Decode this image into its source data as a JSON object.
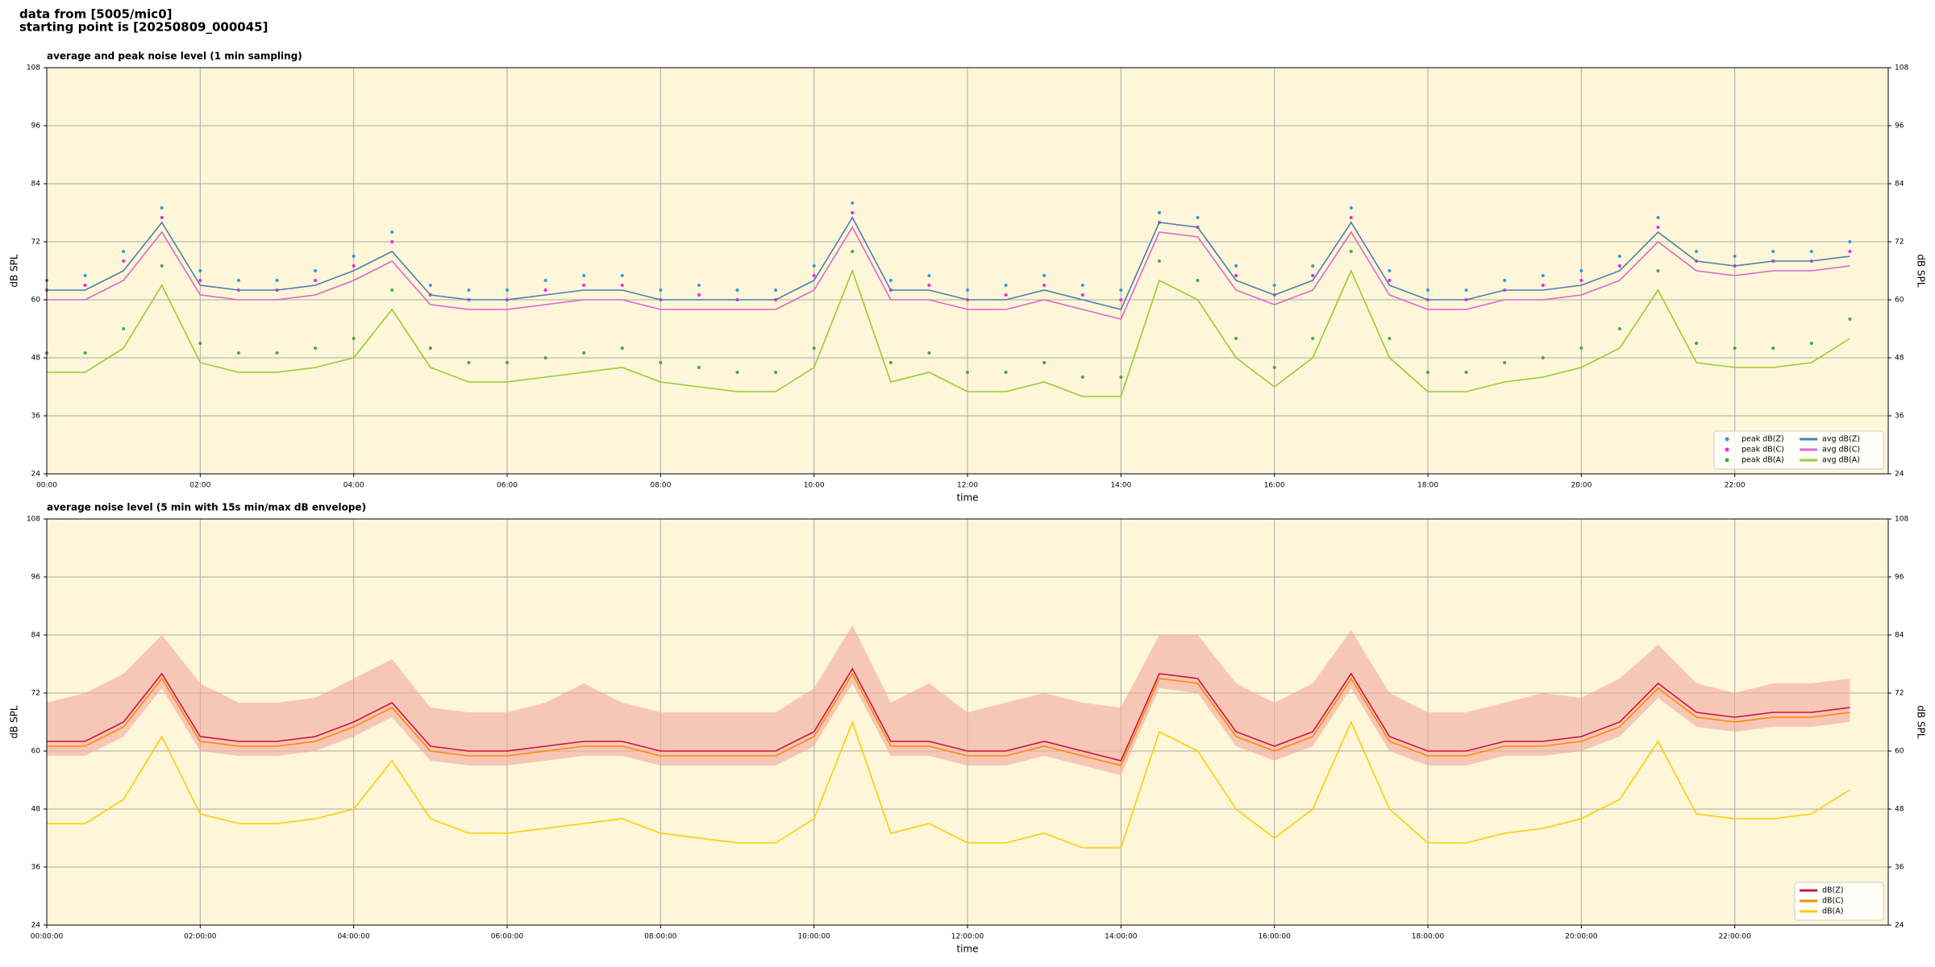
{
  "header": {
    "source": "data from [5005/mic0]",
    "start": "starting point is [20250809_000045]"
  },
  "chart_data": [
    {
      "type": "line",
      "title": "average and peak noise level (1 min sampling)",
      "x_label": "time",
      "y_label": "dB SPL",
      "xlim": [
        0,
        24
      ],
      "ylim": [
        24,
        108
      ],
      "xticks": [
        {
          "value": 0,
          "label": "00:00"
        },
        {
          "value": 2,
          "label": "02:00"
        },
        {
          "value": 4,
          "label": "04:00"
        },
        {
          "value": 6,
          "label": "06:00"
        },
        {
          "value": 8,
          "label": "08:00"
        },
        {
          "value": 10,
          "label": "10:00"
        },
        {
          "value": 12,
          "label": "12:00"
        },
        {
          "value": 14,
          "label": "14:00"
        },
        {
          "value": 16,
          "label": "16:00"
        },
        {
          "value": 18,
          "label": "18:00"
        },
        {
          "value": 20,
          "label": "20:00"
        },
        {
          "value": 22,
          "label": "22:00"
        }
      ],
      "yticks": [
        24,
        36,
        48,
        60,
        72,
        84,
        96,
        108
      ],
      "grid": true,
      "legend": "lower right",
      "legend_columns": 2,
      "x": [
        0,
        0.5,
        1,
        1.5,
        2,
        2.5,
        3,
        3.5,
        4,
        4.5,
        5,
        5.5,
        6,
        6.5,
        7,
        7.5,
        8,
        8.5,
        9,
        9.5,
        10,
        10.5,
        11,
        11.5,
        12,
        12.5,
        13,
        13.5,
        14,
        14.5,
        15,
        15.5,
        16,
        16.5,
        17,
        17.5,
        18,
        18.5,
        19,
        19.5,
        20,
        20.5,
        21,
        21.5,
        22,
        22.5,
        23,
        23.5
      ],
      "series": [
        {
          "name": "peak dB(Z)",
          "kind": "scatter",
          "color": "#3399dd",
          "values": [
            64,
            65,
            70,
            79,
            66,
            64,
            64,
            66,
            69,
            74,
            63,
            62,
            62,
            64,
            65,
            65,
            62,
            63,
            62,
            62,
            67,
            80,
            64,
            65,
            62,
            63,
            65,
            63,
            62,
            78,
            77,
            67,
            63,
            67,
            79,
            66,
            62,
            62,
            64,
            65,
            66,
            69,
            77,
            70,
            69,
            70,
            70,
            72
          ]
        },
        {
          "name": "peak dB(C)",
          "kind": "scatter",
          "color": "#ee22ee",
          "values": [
            62,
            63,
            68,
            77,
            64,
            62,
            62,
            64,
            67,
            72,
            61,
            60,
            60,
            62,
            63,
            63,
            60,
            61,
            60,
            60,
            65,
            78,
            62,
            63,
            60,
            61,
            63,
            61,
            60,
            76,
            75,
            65,
            61,
            65,
            77,
            64,
            60,
            60,
            62,
            63,
            64,
            67,
            75,
            68,
            67,
            68,
            68,
            70
          ]
        },
        {
          "name": "peak dB(A)",
          "kind": "scatter",
          "color": "#44aa44",
          "values": [
            49,
            49,
            54,
            67,
            51,
            49,
            49,
            50,
            52,
            62,
            50,
            47,
            47,
            48,
            49,
            50,
            47,
            46,
            45,
            45,
            50,
            70,
            47,
            49,
            45,
            45,
            47,
            44,
            44,
            68,
            64,
            52,
            46,
            52,
            70,
            52,
            45,
            45,
            47,
            48,
            50,
            54,
            66,
            51,
            50,
            50,
            51,
            56
          ]
        },
        {
          "name": "avg dB(Z)",
          "kind": "line",
          "color": "#4a7fb0",
          "values": [
            62,
            62,
            66,
            76,
            63,
            62,
            62,
            63,
            66,
            70,
            61,
            60,
            60,
            61,
            62,
            62,
            60,
            60,
            60,
            60,
            64,
            77,
            62,
            62,
            60,
            60,
            62,
            60,
            58,
            76,
            75,
            64,
            61,
            64,
            76,
            63,
            60,
            60,
            62,
            62,
            63,
            66,
            74,
            68,
            67,
            68,
            68,
            69
          ]
        },
        {
          "name": "avg dB(C)",
          "kind": "line",
          "color": "#dd66cc",
          "values": [
            60,
            60,
            64,
            74,
            61,
            60,
            60,
            61,
            64,
            68,
            59,
            58,
            58,
            59,
            60,
            60,
            58,
            58,
            58,
            58,
            62,
            75,
            60,
            60,
            58,
            58,
            60,
            58,
            56,
            74,
            73,
            62,
            59,
            62,
            74,
            61,
            58,
            58,
            60,
            60,
            61,
            64,
            72,
            66,
            65,
            66,
            66,
            67
          ]
        },
        {
          "name": "avg dB(A)",
          "kind": "line",
          "color": "#99cc33",
          "values": [
            45,
            45,
            50,
            63,
            47,
            45,
            45,
            46,
            48,
            58,
            46,
            43,
            43,
            44,
            45,
            46,
            43,
            42,
            41,
            41,
            46,
            66,
            43,
            45,
            41,
            41,
            43,
            40,
            40,
            64,
            60,
            48,
            42,
            48,
            66,
            48,
            41,
            41,
            43,
            44,
            46,
            50,
            62,
            47,
            46,
            46,
            47,
            52
          ]
        }
      ]
    },
    {
      "type": "line",
      "title": "average noise level (5 min with 15s min/max dB envelope)",
      "x_label": "time",
      "y_label": "dB SPL",
      "xlim": [
        0,
        24
      ],
      "ylim": [
        24,
        108
      ],
      "xticks": [
        {
          "value": 0,
          "label": "00:00:00"
        },
        {
          "value": 2,
          "label": "02:00:00"
        },
        {
          "value": 4,
          "label": "04:00:00"
        },
        {
          "value": 6,
          "label": "06:00:00"
        },
        {
          "value": 8,
          "label": "08:00:00"
        },
        {
          "value": 10,
          "label": "10:00:00"
        },
        {
          "value": 12,
          "label": "12:00:00"
        },
        {
          "value": 14,
          "label": "14:00:00"
        },
        {
          "value": 16,
          "label": "16:00:00"
        },
        {
          "value": 18,
          "label": "18:00:00"
        },
        {
          "value": 20,
          "label": "20:00:00"
        },
        {
          "value": 22,
          "label": "22:00:00"
        }
      ],
      "yticks": [
        24,
        36,
        48,
        60,
        72,
        84,
        96,
        108
      ],
      "grid": true,
      "legend": "lower right",
      "legend_columns": 1,
      "x": [
        0,
        0.5,
        1,
        1.5,
        2,
        2.5,
        3,
        3.5,
        4,
        4.5,
        5,
        5.5,
        6,
        6.5,
        7,
        7.5,
        8,
        8.5,
        9,
        9.5,
        10,
        10.5,
        11,
        11.5,
        12,
        12.5,
        13,
        13.5,
        14,
        14.5,
        15,
        15.5,
        16,
        16.5,
        17,
        17.5,
        18,
        18.5,
        19,
        19.5,
        20,
        20.5,
        21,
        21.5,
        22,
        22.5,
        23,
        23.5
      ],
      "envelope": {
        "color": "#f4a8a0",
        "high": [
          70,
          72,
          76,
          84,
          74,
          70,
          70,
          71,
          75,
          79,
          69,
          68,
          68,
          70,
          74,
          70,
          68,
          68,
          68,
          68,
          73,
          86,
          70,
          74,
          68,
          70,
          72,
          70,
          69,
          84,
          84,
          74,
          70,
          74,
          85,
          72,
          68,
          68,
          70,
          72,
          71,
          75,
          82,
          74,
          72,
          74,
          74,
          75
        ],
        "low": [
          59,
          59,
          63,
          73,
          60,
          59,
          59,
          60,
          63,
          67,
          58,
          57,
          57,
          58,
          59,
          59,
          57,
          57,
          57,
          57,
          61,
          74,
          59,
          59,
          57,
          57,
          59,
          57,
          55,
          73,
          72,
          61,
          58,
          61,
          73,
          60,
          57,
          57,
          59,
          59,
          60,
          63,
          71,
          65,
          64,
          65,
          65,
          66
        ]
      },
      "series": [
        {
          "name": "dB(Z)",
          "kind": "line",
          "color": "#cc1144",
          "values": [
            62,
            62,
            66,
            76,
            63,
            62,
            62,
            63,
            66,
            70,
            61,
            60,
            60,
            61,
            62,
            62,
            60,
            60,
            60,
            60,
            64,
            77,
            62,
            62,
            60,
            60,
            62,
            60,
            58,
            76,
            75,
            64,
            61,
            64,
            76,
            63,
            60,
            60,
            62,
            62,
            63,
            66,
            74,
            68,
            67,
            68,
            68,
            69
          ]
        },
        {
          "name": "dB(C)",
          "kind": "line",
          "color": "#ff8800",
          "values": [
            61,
            61,
            65,
            75,
            62,
            61,
            61,
            62,
            65,
            69,
            60,
            59,
            59,
            60,
            61,
            61,
            59,
            59,
            59,
            59,
            63,
            76,
            61,
            61,
            59,
            59,
            61,
            59,
            57,
            75,
            74,
            63,
            60,
            63,
            75,
            62,
            59,
            59,
            61,
            61,
            62,
            65,
            73,
            67,
            66,
            67,
            67,
            68
          ]
        },
        {
          "name": "dB(A)",
          "kind": "line",
          "color": "#ffcc00",
          "values": [
            45,
            45,
            50,
            63,
            47,
            45,
            45,
            46,
            48,
            58,
            46,
            43,
            43,
            44,
            45,
            46,
            43,
            42,
            41,
            41,
            46,
            66,
            43,
            45,
            41,
            41,
            43,
            40,
            40,
            64,
            60,
            48,
            42,
            48,
            66,
            48,
            41,
            41,
            43,
            44,
            46,
            50,
            62,
            47,
            46,
            46,
            47,
            52
          ]
        }
      ]
    }
  ]
}
